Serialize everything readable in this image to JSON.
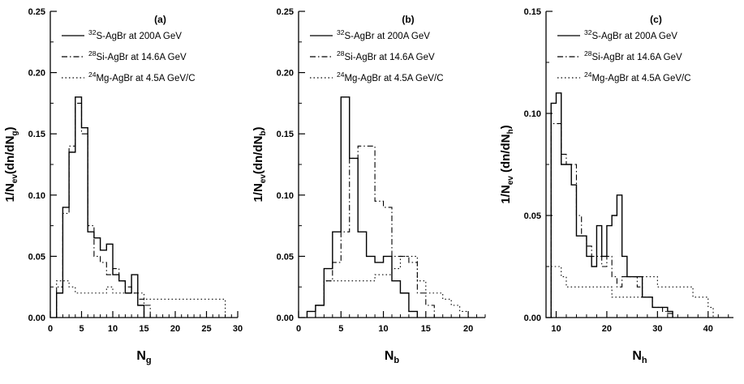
{
  "figure": {
    "background": "#ffffff",
    "line_color": "#000000"
  },
  "chart_data": [
    {
      "type": "step-histogram",
      "panel_label": "(a)",
      "xlabel_parts": [
        {
          "t": "N"
        },
        {
          "t": "g",
          "sub": true
        }
      ],
      "ylabel_parts": [
        {
          "t": "1/N"
        },
        {
          "t": "ev",
          "sub": true
        },
        {
          "t": "(dn/dN"
        },
        {
          "t": "g",
          "sub": true
        },
        {
          "t": ")"
        }
      ],
      "xlim": [
        0,
        30
      ],
      "ylim": [
        0,
        0.25
      ],
      "xticks": [
        0,
        5,
        10,
        15,
        20,
        25,
        30
      ],
      "yticks": [
        0.0,
        0.05,
        0.1,
        0.15,
        0.2,
        0.25
      ],
      "x_minor_step": 1,
      "y_minor_step": 0.025,
      "grid": false,
      "legend_position": "top-left",
      "series": [
        {
          "name_parts": [
            {
              "t": "32",
              "sup": true
            },
            {
              "t": "S-AgBr at 200A GeV"
            }
          ],
          "line_style": "solid",
          "x_start": 1,
          "bin_width": 1,
          "heights": [
            0.02,
            0.09,
            0.135,
            0.18,
            0.155,
            0.07,
            0.065,
            0.055,
            0.06,
            0.035,
            0.03,
            0.02,
            0.035,
            0.01
          ]
        },
        {
          "name_parts": [
            {
              "t": "28",
              "sup": true
            },
            {
              "t": "Si-AgBr at 14.6A GeV"
            }
          ],
          "line_style": "dash-dot",
          "x_start": 1,
          "bin_width": 1,
          "heights": [
            0.025,
            0.085,
            0.14,
            0.175,
            0.15,
            0.075,
            0.05,
            0.045,
            0.035,
            0.04,
            0.03,
            0.025,
            0.02,
            0.015,
            0.01
          ]
        },
        {
          "name_parts": [
            {
              "t": "24",
              "sup": true
            },
            {
              "t": "Mg-AgBr at 4.5A GeV/C"
            }
          ],
          "line_style": "dot",
          "x_start": 1,
          "bin_width": 1,
          "heights": [
            0.03,
            0.03,
            0.025,
            0.02,
            0.02,
            0.02,
            0.02,
            0.02,
            0.025,
            0.02,
            0.02,
            0.02,
            0.02,
            0.02,
            0.015,
            0.015,
            0.015,
            0.015,
            0.015,
            0.015,
            0.015,
            0.015,
            0.015,
            0.015,
            0.015,
            0.015,
            0.015
          ]
        }
      ]
    },
    {
      "type": "step-histogram",
      "panel_label": "(b)",
      "xlabel_parts": [
        {
          "t": "N"
        },
        {
          "t": "b",
          "sub": true
        }
      ],
      "ylabel_parts": [
        {
          "t": "1/N"
        },
        {
          "t": "ev",
          "sub": true
        },
        {
          "t": "(dn/dN"
        },
        {
          "t": "b",
          "sub": true
        },
        {
          "t": ")"
        }
      ],
      "xlim": [
        0,
        22
      ],
      "ylim": [
        0,
        0.25
      ],
      "xticks": [
        0,
        5,
        10,
        15,
        20
      ],
      "yticks": [
        0.0,
        0.05,
        0.1,
        0.15,
        0.2,
        0.25
      ],
      "x_minor_step": 1,
      "y_minor_step": 0.025,
      "grid": false,
      "legend_position": "top-left",
      "series": [
        {
          "name_parts": [
            {
              "t": "32",
              "sup": true
            },
            {
              "t": "S-AgBr at 200A GeV"
            }
          ],
          "line_style": "solid",
          "x_start": 1,
          "bin_width": 1,
          "heights": [
            0.005,
            0.01,
            0.04,
            0.07,
            0.18,
            0.13,
            0.07,
            0.05,
            0.045,
            0.05,
            0.03,
            0.02,
            0.005
          ]
        },
        {
          "name_parts": [
            {
              "t": "28",
              "sup": true
            },
            {
              "t": "Si-AgBr at 14.6A GeV"
            }
          ],
          "line_style": "dash-dot",
          "x_start": 2,
          "bin_width": 1,
          "heights": [
            0.01,
            0.03,
            0.045,
            0.07,
            0.13,
            0.14,
            0.14,
            0.095,
            0.09,
            0.05,
            0.05,
            0.045,
            0.02,
            0.01
          ]
        },
        {
          "name_parts": [
            {
              "t": "24",
              "sup": true
            },
            {
              "t": "Mg-AgBr at 4.5A GeV/C"
            }
          ],
          "line_style": "dot",
          "x_start": 2,
          "bin_width": 1,
          "heights": [
            0.01,
            0.03,
            0.03,
            0.03,
            0.03,
            0.03,
            0.03,
            0.035,
            0.035,
            0.04,
            0.05,
            0.05,
            0.03,
            0.02,
            0.02,
            0.015,
            0.01,
            0.005
          ]
        }
      ]
    },
    {
      "type": "step-histogram",
      "panel_label": "(c)",
      "xlabel_parts": [
        {
          "t": "N"
        },
        {
          "t": "h",
          "sub": true
        }
      ],
      "ylabel_parts": [
        {
          "t": "1/N"
        },
        {
          "t": "ev",
          "sub": true
        },
        {
          "t": " (dn/dN"
        },
        {
          "t": "h",
          "sub": true
        },
        {
          "t": ")"
        }
      ],
      "xlim": [
        8,
        45
      ],
      "ylim": [
        0,
        0.15
      ],
      "xticks": [
        10,
        20,
        30,
        40
      ],
      "yticks": [
        0.0,
        0.05,
        0.1,
        0.15
      ],
      "x_minor_step": 2,
      "y_minor_step": 0.025,
      "grid": false,
      "legend_position": "top-left",
      "series": [
        {
          "name_parts": [
            {
              "t": "32",
              "sup": true
            },
            {
              "t": "S-AgBr at 200A GeV"
            }
          ],
          "line_style": "solid",
          "x_start": 9,
          "bin_width": 1,
          "heights": [
            0.105,
            0.11,
            0.075,
            0.075,
            0.065,
            0.04,
            0.04,
            0.03,
            0.025,
            0.045,
            0.03,
            0.045,
            0.05,
            0.06,
            0.03,
            0.02,
            0.02,
            0.02,
            0.01,
            0.01,
            0.005,
            0.005,
            0.005,
            0.003
          ]
        },
        {
          "name_parts": [
            {
              "t": "28",
              "sup": true
            },
            {
              "t": "Si-AgBr at 14.6A GeV"
            }
          ],
          "line_style": "dash-dot",
          "x_start": 9,
          "bin_width": 1,
          "heights": [
            0.095,
            0.095,
            0.08,
            0.075,
            0.075,
            0.05,
            0.04,
            0.035,
            0.03,
            0.03,
            0.025,
            0.03,
            0.02,
            0.015,
            0.02,
            0.02,
            0.02,
            0.015,
            0.01,
            0.01,
            0.005,
            0.005,
            0.003,
            0.002
          ]
        },
        {
          "name_parts": [
            {
              "t": "24",
              "sup": true
            },
            {
              "t": "Mg-AgBr at 4.5A GeV/C"
            }
          ],
          "line_style": "dot",
          "x_start": 9,
          "bin_width": 1,
          "heights": [
            0.025,
            0.025,
            0.02,
            0.015,
            0.015,
            0.015,
            0.015,
            0.015,
            0.015,
            0.015,
            0.015,
            0.015,
            0.01,
            0.01,
            0.01,
            0.01,
            0.01,
            0.01,
            0.02,
            0.02,
            0.02,
            0.015,
            0.015,
            0.015,
            0.015,
            0.015,
            0.015,
            0.015,
            0.01,
            0.01,
            0.01,
            0.005
          ]
        }
      ]
    }
  ]
}
